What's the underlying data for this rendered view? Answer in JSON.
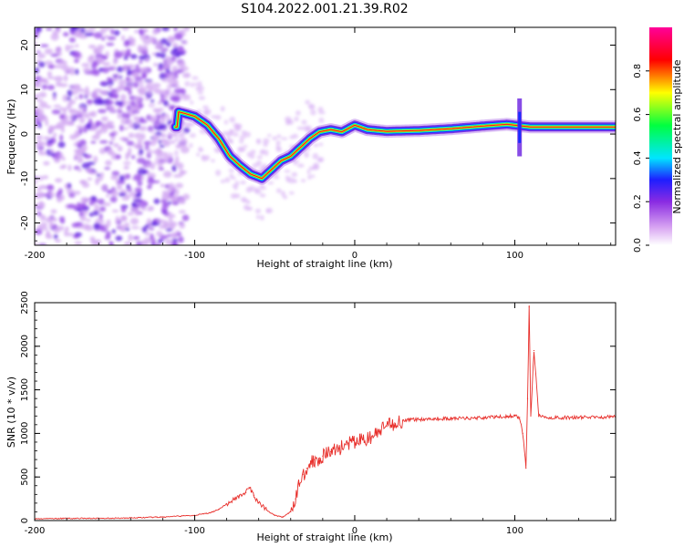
{
  "title": "S104.2022.001.21.39.R02",
  "chart_data": [
    {
      "type": "heatmap",
      "xlabel": "Height of straight line (km)",
      "ylabel": "Frequency (Hz)",
      "xlim": [
        -200,
        163
      ],
      "ylim": [
        -25,
        24
      ],
      "xticks": [
        -200,
        -100,
        0,
        100
      ],
      "yticks": [
        -20,
        -10,
        0,
        10,
        20
      ],
      "xtick_labels": [
        "-200",
        "-100",
        "0",
        "100"
      ],
      "ytick_labels": [
        "-20",
        "-10",
        "0",
        "10",
        "20"
      ],
      "grid": false,
      "colorbar": {
        "label": "Normalized spectral amplitude",
        "range": [
          0,
          1
        ],
        "ticks": [
          0.0,
          0.2,
          0.4,
          0.6,
          0.8
        ],
        "tick_labels": [
          "0.0",
          "0.2",
          "0.4",
          "0.6",
          "0.8"
        ],
        "colors": [
          "#ffffff",
          "#d9a6f2",
          "#8a2be2",
          "#1e1eff",
          "#00e5ff",
          "#00ff40",
          "#ffff00",
          "#ff0000",
          "#ff0099"
        ]
      },
      "ridge": [
        {
          "x": -110,
          "y": 5
        },
        {
          "x": -100,
          "y": 4
        },
        {
          "x": -92,
          "y": 2
        },
        {
          "x": -85,
          "y": -1
        },
        {
          "x": -78,
          "y": -5
        },
        {
          "x": -72,
          "y": -7
        },
        {
          "x": -65,
          "y": -9
        },
        {
          "x": -58,
          "y": -10
        },
        {
          "x": -52,
          "y": -8
        },
        {
          "x": -46,
          "y": -6
        },
        {
          "x": -40,
          "y": -5
        },
        {
          "x": -34,
          "y": -3
        },
        {
          "x": -28,
          "y": -1
        },
        {
          "x": -22,
          "y": 0.5
        },
        {
          "x": -15,
          "y": 1
        },
        {
          "x": -8,
          "y": 0.5
        },
        {
          "x": 0,
          "y": 2
        },
        {
          "x": 8,
          "y": 1
        },
        {
          "x": 20,
          "y": 0.6
        },
        {
          "x": 40,
          "y": 0.8
        },
        {
          "x": 60,
          "y": 1.2
        },
        {
          "x": 80,
          "y": 1.8
        },
        {
          "x": 95,
          "y": 2.2
        },
        {
          "x": 110,
          "y": 1.6
        },
        {
          "x": 140,
          "y": 1.6
        },
        {
          "x": 163,
          "y": 1.6
        }
      ]
    },
    {
      "type": "line",
      "xlabel": "Height of straight line (km)",
      "ylabel": "SNR (10 * v/v)",
      "xlim": [
        -200,
        163
      ],
      "ylim": [
        0,
        2500
      ],
      "xticks": [
        -200,
        -100,
        0,
        100
      ],
      "yticks": [
        0,
        500,
        1000,
        1500,
        2000,
        2500
      ],
      "xtick_labels": [
        "-200",
        "-100",
        "0",
        "100"
      ],
      "ytick_labels": [
        "0",
        "500",
        "1000",
        "1500",
        "2000",
        "2500"
      ],
      "grid": false,
      "color": "#e8302c",
      "x": [
        -200,
        -180,
        -160,
        -140,
        -120,
        -100,
        -90,
        -85,
        -80,
        -75,
        -72,
        -68,
        -66,
        -63,
        -60,
        -55,
        -50,
        -45,
        -40,
        -37,
        -35,
        -32,
        -30,
        -28,
        -25,
        -22,
        -20,
        -15,
        -10,
        -5,
        0,
        5,
        10,
        12,
        15,
        20,
        25,
        30,
        35,
        40,
        50,
        60,
        70,
        80,
        90,
        95,
        100,
        103,
        105,
        107,
        108,
        109,
        110,
        112,
        115,
        120,
        130,
        140,
        150,
        160,
        163
      ],
      "y": [
        20,
        25,
        25,
        30,
        40,
        60,
        90,
        130,
        190,
        250,
        290,
        320,
        380,
        290,
        200,
        120,
        60,
        40,
        100,
        250,
        420,
        530,
        600,
        650,
        700,
        720,
        740,
        790,
        830,
        870,
        900,
        930,
        950,
        970,
        1020,
        1080,
        1120,
        1150,
        1160,
        1160,
        1170,
        1170,
        1175,
        1180,
        1190,
        1195,
        1200,
        1185,
        1000,
        600,
        1400,
        2450,
        1200,
        1950,
        1200,
        1180,
        1180,
        1185,
        1185,
        1190,
        1190
      ]
    }
  ]
}
